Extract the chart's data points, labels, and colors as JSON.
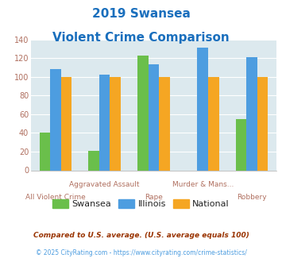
{
  "title_line1": "2019 Swansea",
  "title_line2": "Violent Crime Comparison",
  "categories": [
    "All Violent Crime",
    "Aggravated Assault",
    "Rape",
    "Murder & Mans...",
    "Robbery"
  ],
  "x_labels_row1": [
    "",
    "Aggravated Assault",
    "",
    "Murder & Mans...",
    ""
  ],
  "x_labels_row2": [
    "All Violent Crime",
    "",
    "Rape",
    "",
    "Robbery"
  ],
  "swansea": [
    40,
    21,
    123,
    0,
    55
  ],
  "illinois": [
    108,
    102,
    113,
    131,
    121
  ],
  "national": [
    100,
    100,
    100,
    100,
    100
  ],
  "swansea_color": "#6abf4b",
  "illinois_color": "#4d9de0",
  "national_color": "#f5a623",
  "ylim": [
    0,
    140
  ],
  "yticks": [
    0,
    20,
    40,
    60,
    80,
    100,
    120,
    140
  ],
  "plot_bg": "#dce9ee",
  "fig_bg": "#ffffff",
  "title_color": "#1a6fbd",
  "xlabel_color": "#b07060",
  "yticklabel_color": "#b07060",
  "footnote1": "Compared to U.S. average. (U.S. average equals 100)",
  "footnote2": "© 2025 CityRating.com - https://www.cityrating.com/crime-statistics/",
  "footnote1_color": "#993300",
  "footnote2_color": "#4d9de0",
  "legend_labels": [
    "Swansea",
    "Illinois",
    "National"
  ]
}
